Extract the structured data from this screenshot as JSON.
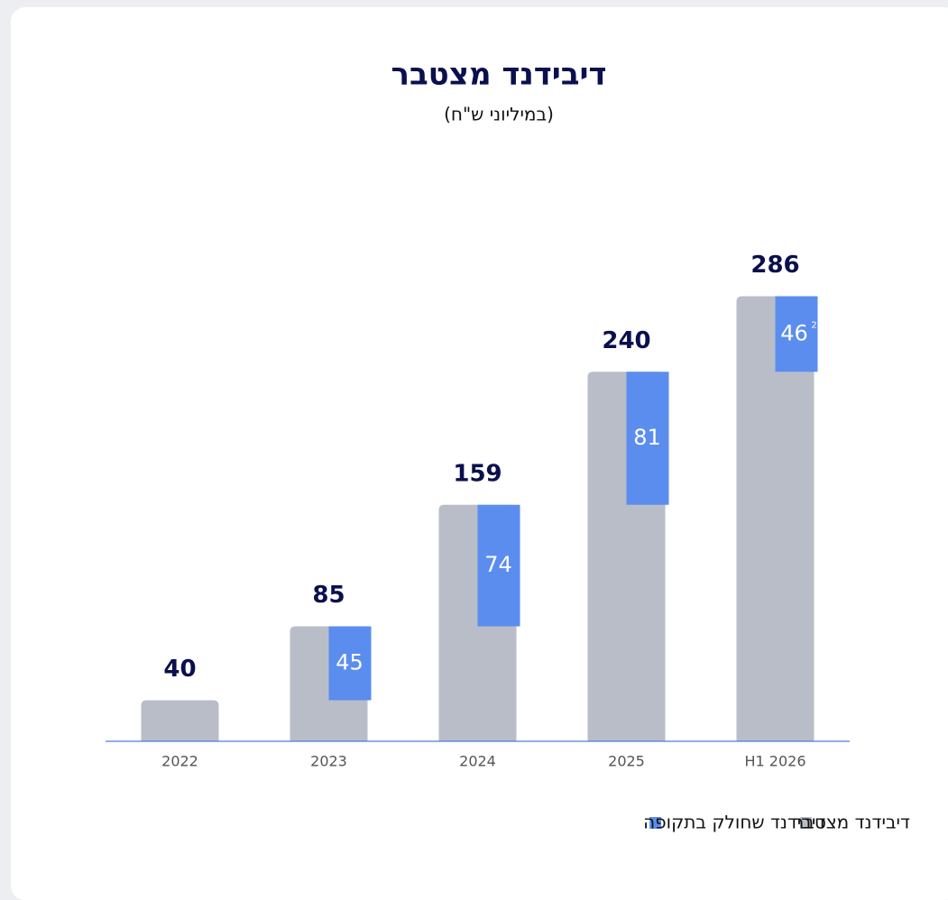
{
  "chart_data": {
    "type": "bar",
    "title": "דיבידנד מצטבר",
    "subtitle": "(במיליוני ש\"ח)",
    "categories": [
      "2022",
      "2023",
      "2024",
      "2025",
      "H1 2026"
    ],
    "series": [
      {
        "name": "דיבידנד מצטבר",
        "color": "#b8bdc8",
        "values": [
          40,
          85,
          159,
          240,
          286
        ]
      },
      {
        "name": "דיבידנד שחולק בתקופה",
        "color": "#5b8def",
        "values": [
          null,
          45,
          74,
          81,
          46
        ],
        "footnotes": [
          null,
          null,
          null,
          null,
          "2"
        ]
      }
    ],
    "ylim": [
      15,
      300
    ],
    "legend": "bottom"
  }
}
